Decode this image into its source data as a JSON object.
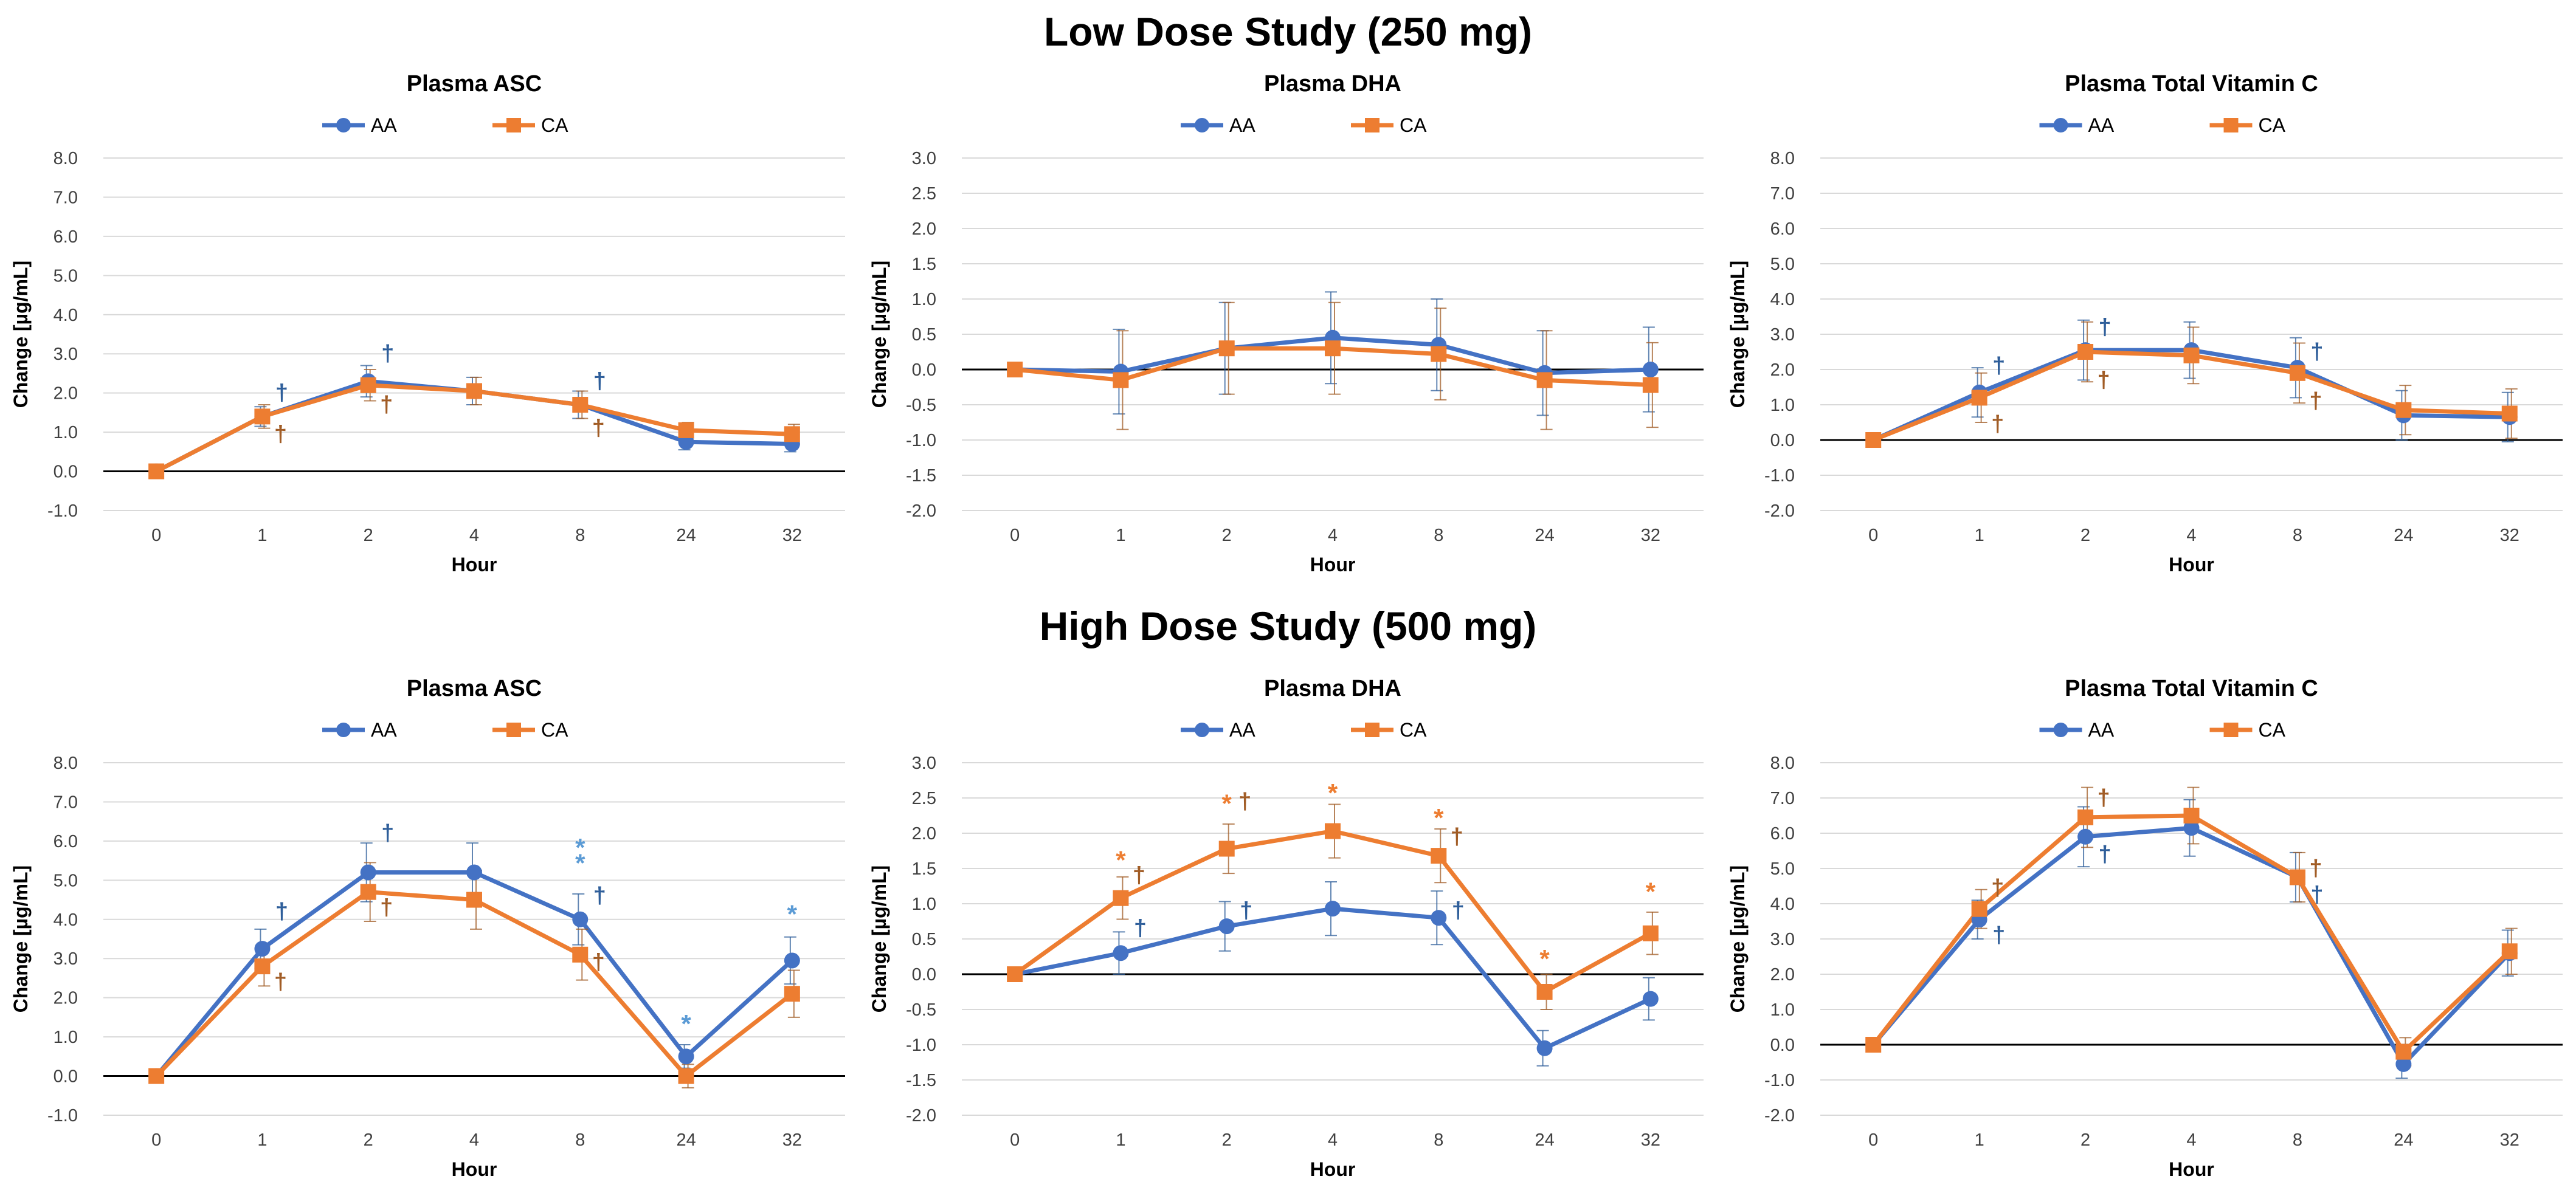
{
  "studies": [
    {
      "title": "Low Dose Study (250 mg)"
    },
    {
      "title": "High Dose Study (500 mg)"
    }
  ],
  "colors": {
    "AA": "#4472C4",
    "CA": "#ED7D31",
    "AA_mark": "#2E5E9A",
    "CA_mark": "#A15C25",
    "AA_star": "#5B9BD5",
    "CA_star": "#ED7D31",
    "grid": "#D9D9D9",
    "axis": "#000000"
  },
  "chart_data": [
    {
      "type": "line",
      "study": "Low Dose Study (250 mg)",
      "title": "Plasma ASC",
      "xlabel": "Hour",
      "ylabel": "Change [µg/mL]",
      "categories": [
        "0",
        "1",
        "2",
        "4",
        "8",
        "24",
        "32"
      ],
      "ylim": [
        -1.0,
        8.0
      ],
      "ystep": 1.0,
      "yticks": [
        "-1.0",
        "0.0",
        "1.0",
        "2.0",
        "3.0",
        "4.0",
        "5.0",
        "6.0",
        "7.0",
        "8.0"
      ],
      "series": [
        {
          "name": "AA",
          "marker": "circle",
          "values": [
            0.0,
            1.4,
            2.3,
            2.05,
            1.7,
            0.75,
            0.7
          ],
          "err": [
            0,
            0.25,
            0.4,
            0.35,
            0.35,
            0.2,
            0.2
          ]
        },
        {
          "name": "CA",
          "marker": "square",
          "values": [
            0.0,
            1.4,
            2.2,
            2.05,
            1.7,
            1.05,
            0.95
          ],
          "err": [
            0,
            0.3,
            0.4,
            0.35,
            0.35,
            0.2,
            0.25
          ]
        }
      ],
      "annotations": [
        {
          "text": "†",
          "series": "AA",
          "x": 1,
          "y": 2.0
        },
        {
          "text": "†",
          "series": "CA",
          "x": 1,
          "y": 0.95
        },
        {
          "text": "†",
          "series": "AA",
          "x": 2,
          "y": 3.0
        },
        {
          "text": "†",
          "series": "CA",
          "x": 2,
          "y": 1.7
        },
        {
          "text": "†",
          "series": "AA",
          "x": 8,
          "y": 2.3
        },
        {
          "text": "†",
          "series": "CA",
          "x": 8,
          "y": 1.1
        }
      ]
    },
    {
      "type": "line",
      "study": "Low Dose Study (250 mg)",
      "title": "Plasma DHA",
      "xlabel": "Hour",
      "ylabel": "Change [µg/mL]",
      "categories": [
        "0",
        "1",
        "2",
        "4",
        "8",
        "24",
        "32"
      ],
      "ylim": [
        -2.0,
        3.0
      ],
      "ystep": 0.5,
      "yticks": [
        "-2.0",
        "-1.5",
        "-1.0",
        "-0.5",
        "0.0",
        "0.5",
        "1.0",
        "1.5",
        "2.0",
        "2.5",
        "3.0"
      ],
      "series": [
        {
          "name": "AA",
          "marker": "circle",
          "values": [
            0.0,
            -0.03,
            0.3,
            0.45,
            0.35,
            -0.05,
            0.0
          ],
          "err": [
            0,
            0.6,
            0.65,
            0.65,
            0.65,
            0.6,
            0.6
          ]
        },
        {
          "name": "CA",
          "marker": "square",
          "values": [
            0.0,
            -0.15,
            0.3,
            0.3,
            0.22,
            -0.15,
            -0.22
          ],
          "err": [
            0,
            0.7,
            0.65,
            0.65,
            0.65,
            0.7,
            0.6
          ]
        }
      ],
      "annotations": []
    },
    {
      "type": "line",
      "study": "Low Dose Study (250 mg)",
      "title": "Plasma Total Vitamin C",
      "xlabel": "Hour",
      "ylabel": "Change [µg/mL]",
      "categories": [
        "0",
        "1",
        "2",
        "4",
        "8",
        "24",
        "32"
      ],
      "ylim": [
        -2.0,
        8.0
      ],
      "ystep": 1.0,
      "yticks": [
        "-2.0",
        "-1.0",
        "0.0",
        "1.0",
        "2.0",
        "3.0",
        "4.0",
        "5.0",
        "6.0",
        "7.0",
        "8.0"
      ],
      "series": [
        {
          "name": "AA",
          "marker": "circle",
          "values": [
            0.0,
            1.35,
            2.55,
            2.55,
            2.05,
            0.7,
            0.65
          ],
          "err": [
            0,
            0.7,
            0.85,
            0.8,
            0.85,
            0.7,
            0.7
          ]
        },
        {
          "name": "CA",
          "marker": "square",
          "values": [
            0.0,
            1.2,
            2.5,
            2.4,
            1.9,
            0.85,
            0.75
          ],
          "err": [
            0,
            0.7,
            0.85,
            0.8,
            0.85,
            0.7,
            0.7
          ]
        }
      ],
      "annotations": [
        {
          "text": "†",
          "series": "AA",
          "x": 1,
          "y": 2.1
        },
        {
          "text": "†",
          "series": "CA",
          "x": 1,
          "y": 0.45
        },
        {
          "text": "†",
          "series": "AA",
          "x": 2,
          "y": 3.2
        },
        {
          "text": "†",
          "series": "CA",
          "x": 2,
          "y": 1.7
        },
        {
          "text": "†",
          "series": "AA",
          "x": 8,
          "y": 2.5
        },
        {
          "text": "†",
          "series": "CA",
          "x": 8,
          "y": 1.1
        }
      ]
    },
    {
      "type": "line",
      "study": "High Dose Study (500 mg)",
      "title": "Plasma ASC",
      "xlabel": "Hour",
      "ylabel": "Change [µg/mL]",
      "categories": [
        "0",
        "1",
        "2",
        "4",
        "8",
        "24",
        "32"
      ],
      "ylim": [
        -1.0,
        8.0
      ],
      "ystep": 1.0,
      "yticks": [
        "-1.0",
        "0.0",
        "1.0",
        "2.0",
        "3.0",
        "4.0",
        "5.0",
        "6.0",
        "7.0",
        "8.0"
      ],
      "series": [
        {
          "name": "AA",
          "marker": "circle",
          "values": [
            0.0,
            3.25,
            5.2,
            5.2,
            4.0,
            0.5,
            2.95
          ],
          "err": [
            0,
            0.5,
            0.75,
            0.75,
            0.65,
            0.3,
            0.6
          ]
        },
        {
          "name": "CA",
          "marker": "square",
          "values": [
            0.0,
            2.8,
            4.7,
            4.5,
            3.1,
            0.0,
            2.1
          ],
          "err": [
            0,
            0.5,
            0.75,
            0.75,
            0.65,
            0.3,
            0.6
          ]
        }
      ],
      "annotations": [
        {
          "text": "†",
          "series": "AA",
          "x": 1,
          "y": 4.2
        },
        {
          "text": "†",
          "series": "CA",
          "x": 1,
          "y": 2.4
        },
        {
          "text": "†",
          "series": "AA",
          "x": 2,
          "y": 6.2
        },
        {
          "text": "†",
          "series": "CA",
          "x": 2,
          "y": 4.3
        },
        {
          "text": "*",
          "series": "AA",
          "x": 8,
          "y": 5.8
        },
        {
          "text": "*",
          "series": "AA",
          "x": 8,
          "y": 5.4
        },
        {
          "text": "†",
          "series": "AA",
          "x": 8,
          "y": 4.6
        },
        {
          "text": "†",
          "series": "CA",
          "x": 8,
          "y": 2.9
        },
        {
          "text": "*",
          "series": "AA",
          "x": 24,
          "y": 1.3
        },
        {
          "text": "*",
          "series": "AA",
          "x": 32,
          "y": 4.1
        }
      ]
    },
    {
      "type": "line",
      "study": "High Dose Study (500 mg)",
      "title": "Plasma DHA",
      "xlabel": "Hour",
      "ylabel": "Change [µg/mL]",
      "categories": [
        "0",
        "1",
        "2",
        "4",
        "8",
        "24",
        "32"
      ],
      "ylim": [
        -2.0,
        3.0
      ],
      "ystep": 0.5,
      "yticks": [
        "-2.0",
        "-1.5",
        "-1.0",
        "-0.5",
        "0.0",
        "0.5",
        "1.0",
        "1.5",
        "2.0",
        "2.5",
        "3.0"
      ],
      "series": [
        {
          "name": "AA",
          "marker": "circle",
          "values": [
            0.0,
            0.3,
            0.68,
            0.93,
            0.8,
            -1.05,
            -0.35
          ],
          "err": [
            0,
            0.3,
            0.35,
            0.38,
            0.38,
            0.25,
            0.3
          ]
        },
        {
          "name": "CA",
          "marker": "square",
          "values": [
            0.0,
            1.08,
            1.78,
            2.03,
            1.68,
            -0.25,
            0.58
          ],
          "err": [
            0,
            0.3,
            0.35,
            0.38,
            0.38,
            0.25,
            0.3
          ]
        }
      ],
      "annotations": [
        {
          "text": "*",
          "series": "CA",
          "x": 1,
          "y": 1.6
        },
        {
          "text": "†",
          "series": "CA",
          "x": 1,
          "y": 1.4
        },
        {
          "text": "†",
          "series": "AA",
          "x": 1,
          "y": 0.65
        },
        {
          "text": "*",
          "series": "CA",
          "x": 2,
          "y": 2.4
        },
        {
          "text": "†",
          "series": "CA",
          "x": 2,
          "y": 2.45
        },
        {
          "text": "†",
          "series": "AA",
          "x": 2,
          "y": 0.9
        },
        {
          "text": "*",
          "series": "CA",
          "x": 4,
          "y": 2.55
        },
        {
          "text": "*",
          "series": "CA",
          "x": 8,
          "y": 2.2
        },
        {
          "text": "†",
          "series": "CA",
          "x": 8,
          "y": 1.95
        },
        {
          "text": "†",
          "series": "AA",
          "x": 8,
          "y": 0.9
        },
        {
          "text": "*",
          "series": "CA",
          "x": 24,
          "y": 0.2
        },
        {
          "text": "*",
          "series": "CA",
          "x": 32,
          "y": 1.15
        }
      ]
    },
    {
      "type": "line",
      "study": "High Dose Study (500 mg)",
      "title": "Plasma Total Vitamin C",
      "xlabel": "Hour",
      "ylabel": "Change [µg/mL]",
      "categories": [
        "0",
        "1",
        "2",
        "4",
        "8",
        "24",
        "32"
      ],
      "ylim": [
        -2.0,
        8.0
      ],
      "ystep": 1.0,
      "yticks": [
        "-2.0",
        "-1.0",
        "0.0",
        "1.0",
        "2.0",
        "3.0",
        "4.0",
        "5.0",
        "6.0",
        "7.0",
        "8.0"
      ],
      "series": [
        {
          "name": "AA",
          "marker": "circle",
          "values": [
            0.0,
            3.55,
            5.9,
            6.15,
            4.75,
            -0.55,
            2.6
          ],
          "err": [
            0,
            0.55,
            0.85,
            0.8,
            0.7,
            0.4,
            0.65
          ]
        },
        {
          "name": "CA",
          "marker": "square",
          "values": [
            0.0,
            3.85,
            6.45,
            6.5,
            4.75,
            -0.2,
            2.65
          ],
          "err": [
            0,
            0.55,
            0.85,
            0.8,
            0.7,
            0.4,
            0.65
          ]
        }
      ],
      "annotations": [
        {
          "text": "†",
          "series": "CA",
          "x": 1,
          "y": 4.45
        },
        {
          "text": "†",
          "series": "AA",
          "x": 1,
          "y": 3.1
        },
        {
          "text": "†",
          "series": "CA",
          "x": 2,
          "y": 7.0
        },
        {
          "text": "†",
          "series": "AA",
          "x": 2,
          "y": 5.4
        },
        {
          "text": "†",
          "series": "AA",
          "x": 8,
          "y": 4.25
        },
        {
          "text": "†",
          "series": "CA",
          "x": 8,
          "y": 5.0
        }
      ]
    }
  ]
}
